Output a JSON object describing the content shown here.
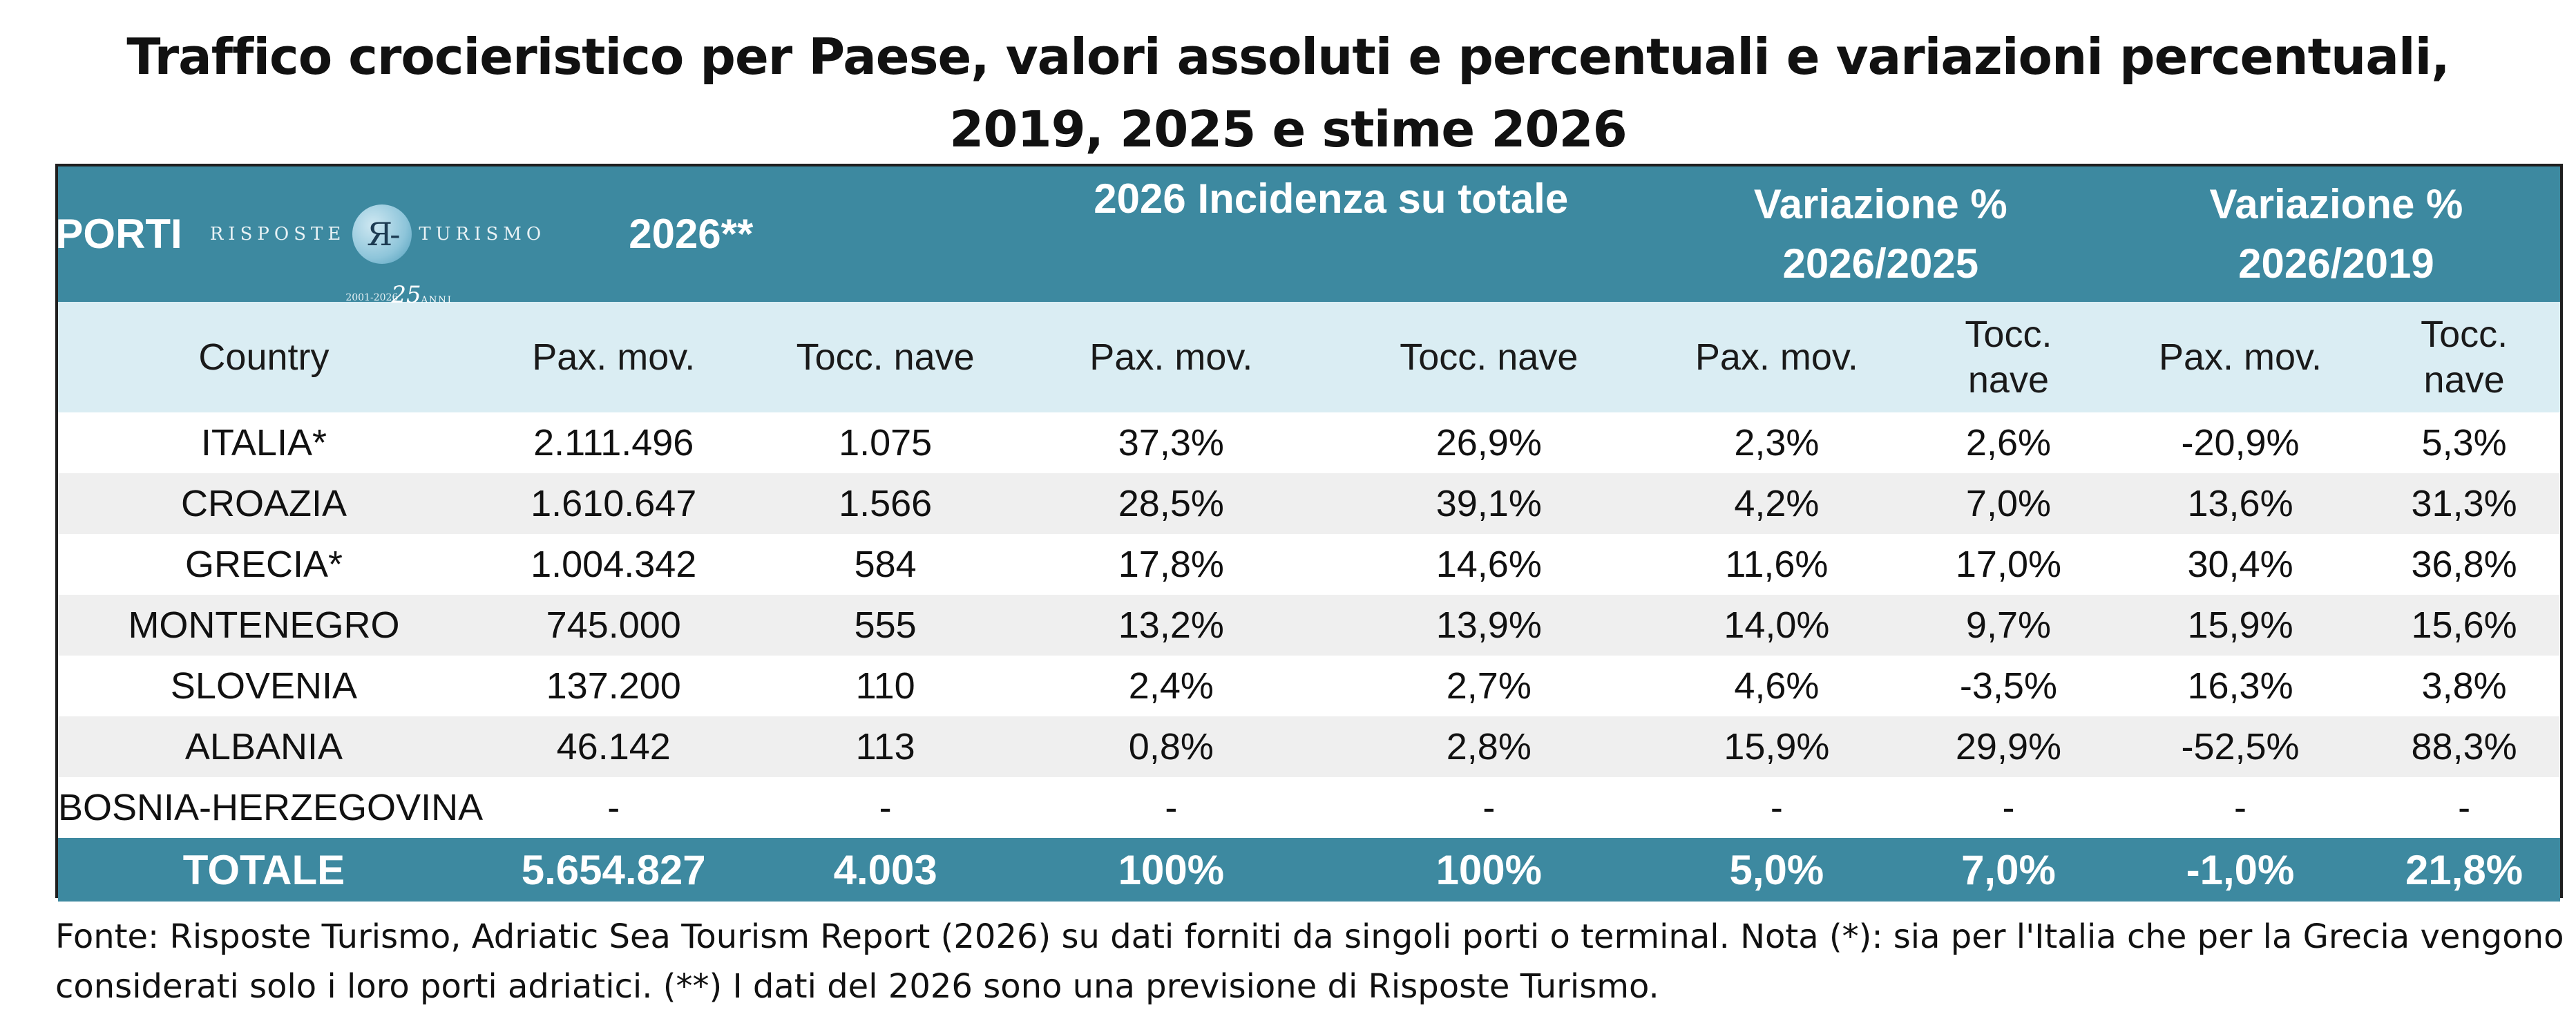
{
  "title": {
    "line1": "Traffico crocieristico per Paese, valori assoluti e percentuali e variazioni percentuali,",
    "line2": "2019, 2025 e stime 2026"
  },
  "header": {
    "porti": "PORTI",
    "logo_left": "RISPOSTE",
    "logo_right": "TURISMO",
    "logo_mono": "Я-",
    "logo_years": "2001-2026",
    "logo_25": "25",
    "logo_anni": "ANNI",
    "year": "2026**",
    "incidenza": "2026 Incidenza su totale",
    "var1_line1": "Variazione %",
    "var1_line2": "2026/2025",
    "var2_line1": "Variazione %",
    "var2_line2": "2026/2019"
  },
  "subheader": {
    "country": "Country",
    "pax1": "Pax. mov.",
    "tocc1": "Tocc. nave",
    "pax2": "Pax. mov.",
    "tocc2": "Tocc. nave",
    "pax3": "Pax. mov.",
    "tocc3_a": "Tocc.",
    "tocc3_b": "nave",
    "pax4": "Pax. mov.",
    "tocc4_a": "Tocc.",
    "tocc4_b": "nave"
  },
  "rows": [
    [
      "ITALIA*",
      "2.111.496",
      "1.075",
      "37,3%",
      "26,9%",
      "2,3%",
      "2,6%",
      "-20,9%",
      "5,3%"
    ],
    [
      "CROAZIA",
      "1.610.647",
      "1.566",
      "28,5%",
      "39,1%",
      "4,2%",
      "7,0%",
      "13,6%",
      "31,3%"
    ],
    [
      "GRECIA*",
      "1.004.342",
      "584",
      "17,8%",
      "14,6%",
      "11,6%",
      "17,0%",
      "30,4%",
      "36,8%"
    ],
    [
      "MONTENEGRO",
      "745.000",
      "555",
      "13,2%",
      "13,9%",
      "14,0%",
      "9,7%",
      "15,9%",
      "15,6%"
    ],
    [
      "SLOVENIA",
      "137.200",
      "110",
      "2,4%",
      "2,7%",
      "4,6%",
      "-3,5%",
      "16,3%",
      "3,8%"
    ],
    [
      "ALBANIA",
      "46.142",
      "113",
      "0,8%",
      "2,8%",
      "15,9%",
      "29,9%",
      "-52,5%",
      "88,3%"
    ],
    [
      "BOSNIA-HERZEGOVINA",
      "-",
      "-",
      "-",
      "-",
      "-",
      "-",
      "-",
      "-"
    ]
  ],
  "total": [
    "TOTALE",
    "5.654.827",
    "4.003",
    "100%",
    "100%",
    "5,0%",
    "7,0%",
    "-1,0%",
    "21,8%"
  ],
  "note": {
    "line1": "Fonte: Risposte Turismo, Adriatic Sea Tourism Report (2026) su dati forniti da singoli porti o terminal. Nota (*): sia per l'Italia che per la Grecia vengono",
    "line2": "considerati solo i loro porti adriatici. (**) I dati del 2026 sono una previsione di Risposte Turismo."
  },
  "colors": {
    "header_bg": "#3d89a0",
    "subheader_bg": "#daedf3",
    "alt_row_bg": "#efefef"
  }
}
